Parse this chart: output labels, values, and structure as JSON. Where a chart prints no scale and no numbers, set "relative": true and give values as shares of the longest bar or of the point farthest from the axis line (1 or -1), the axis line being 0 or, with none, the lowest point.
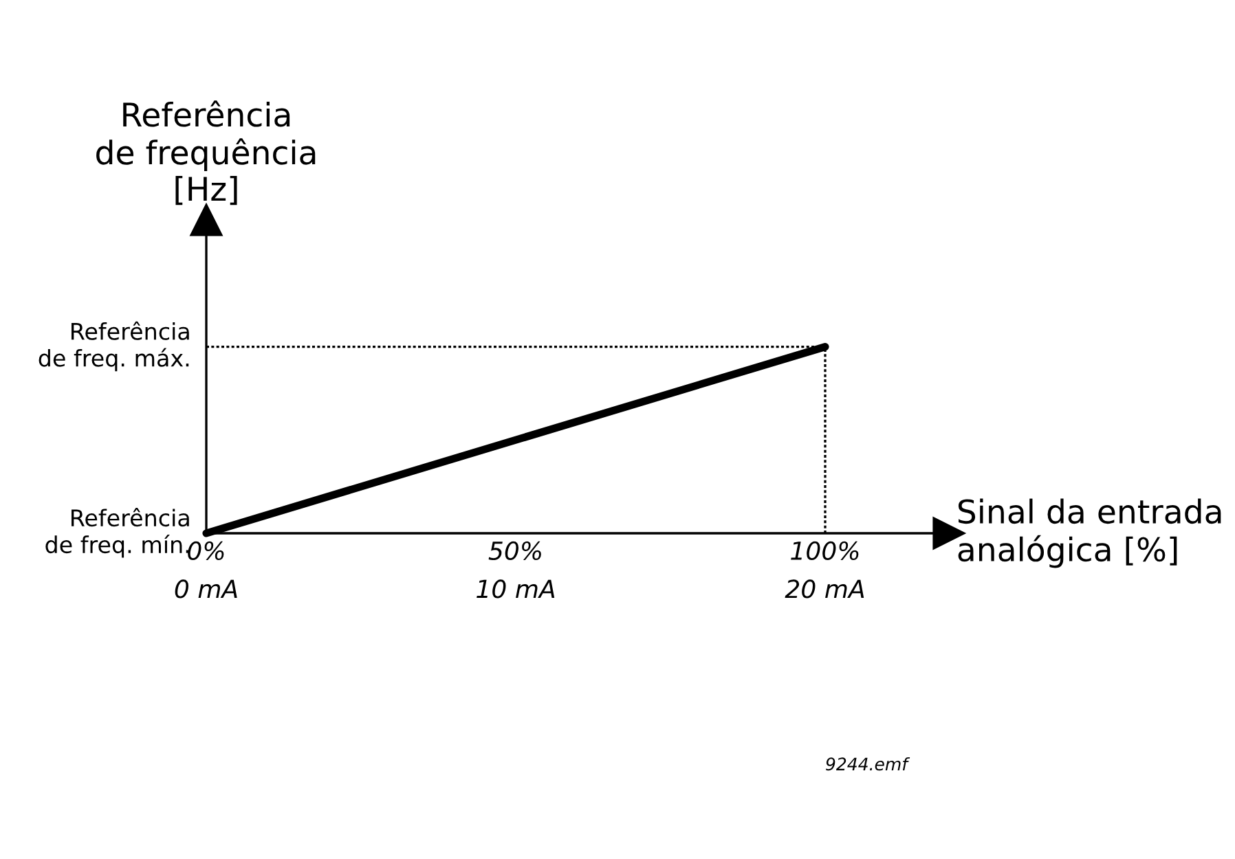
{
  "chart_data": {
    "type": "line",
    "relative": true,
    "ylabel": "Referência\nde frequência\n[Hz]",
    "xlabel": "Sinal da entrada\nanalógica [%]",
    "x": [
      0,
      100
    ],
    "series": [
      {
        "color": "#000000",
        "values": [
          0,
          1
        ]
      },
      {
        "color": "#000000",
        "values": [
          1,
          1
        ],
        "line_style": "dotted"
      },
      {
        "color": "#000000",
        "x": [
          100,
          100
        ],
        "values": [
          0,
          1
        ],
        "line_style": "dotted"
      }
    ],
    "xlim": [
      0,
      120
    ],
    "xticks": [
      {
        "value": 0,
        "label": "0%"
      },
      {
        "value": 50,
        "label": "50%"
      },
      {
        "value": 100,
        "label": "100%"
      }
    ],
    "x2lim": [
      0,
      24
    ],
    "x2ticks": [
      {
        "value": 0,
        "label": "0 mA"
      },
      {
        "value": 10,
        "label": "10 mA"
      },
      {
        "value": 20,
        "label": "20 mA"
      }
    ],
    "annotations": [
      {
        "text": "Referência\nde freq. máx.",
        "x": 0,
        "y": 1
      },
      {
        "text": "Referência\nde freq. mín.",
        "x": 0,
        "y": 0
      },
      "9244.emf"
    ],
    "grid": false,
    "legend": false,
    "marker": "none",
    "line_style": "solid"
  }
}
